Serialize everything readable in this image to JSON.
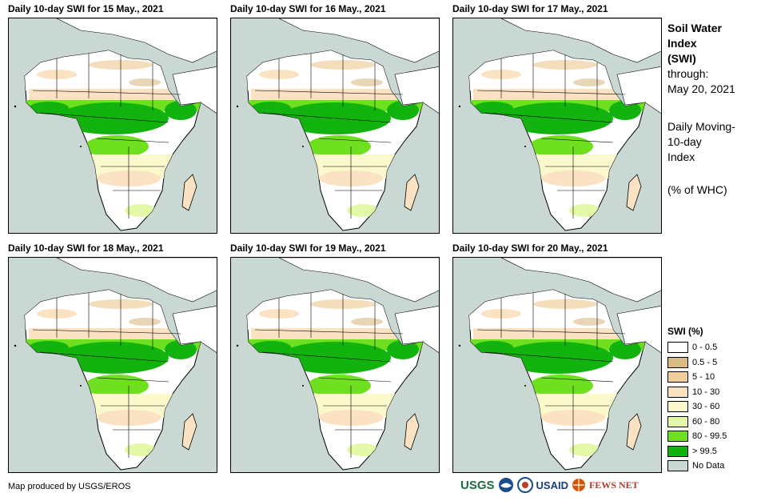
{
  "panels": [
    {
      "title": "Daily 10-day  SWI for 15 May., 2021"
    },
    {
      "title": "Daily 10-day  SWI for 16 May., 2021"
    },
    {
      "title": "Daily 10-day  SWI for 17 May., 2021"
    },
    {
      "title": "Daily 10-day  SWI for 18 May., 2021"
    },
    {
      "title": "Daily 10-day  SWI for 19 May., 2021"
    },
    {
      "title": "Daily 10-day  SWI for 20 May., 2021"
    }
  ],
  "sidebar": {
    "heading_line1": "Soil Water",
    "heading_line2": "Index",
    "heading_line3": "(SWI)",
    "through_label": "through:",
    "through_date": "May 20, 2021",
    "desc_line1": "Daily Moving-",
    "desc_line2": "10-day",
    "desc_line3": "Index",
    "units": "(% of WHC)"
  },
  "legend": {
    "title": "SWI (%)",
    "items": [
      {
        "label": "0 - 0.5",
        "color": "#ffffff"
      },
      {
        "label": "0.5 - 5",
        "color": "#d9bb86"
      },
      {
        "label": "5 - 10",
        "color": "#f0cf9c"
      },
      {
        "label": "10 - 30",
        "color": "#fbe2c2"
      },
      {
        "label": "30 - 60",
        "color": "#fbf8cc"
      },
      {
        "label": "60 - 80",
        "color": "#e3f9a8"
      },
      {
        "label": "80 - 99.5",
        "color": "#6fe020"
      },
      {
        "label": "> 99.5",
        "color": "#13b30f"
      },
      {
        "label": "No Data",
        "color": "#c9d8d3"
      }
    ]
  },
  "credit": "Map produced by USGS/EROS",
  "logos": {
    "usgs": "USGS",
    "usaid": "USAID",
    "fews": "FEWS NET"
  }
}
